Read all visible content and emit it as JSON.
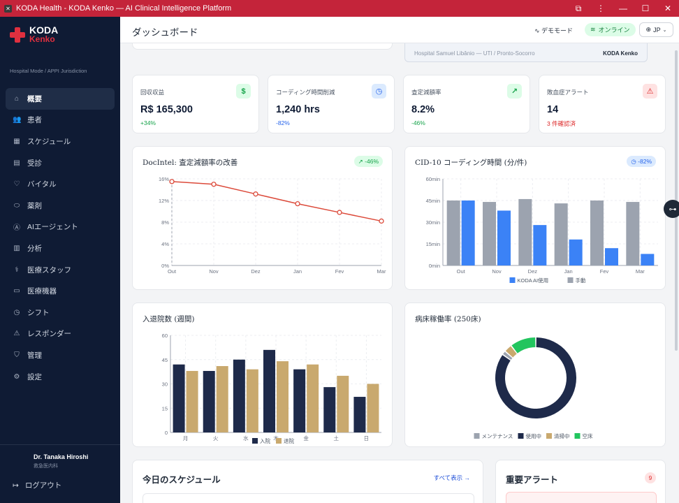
{
  "window": {
    "title": "KODA Health - KODA Kenko — AI Clinical Intelligence Platform"
  },
  "brand": {
    "line1": "KODA",
    "line2": "Kenko",
    "jurisdiction": "Hospital Mode / APPI Jurisdiction"
  },
  "sidebar": {
    "items": [
      {
        "label": "概要",
        "icon": "home-icon",
        "glyph": "⌂"
      },
      {
        "label": "患者",
        "icon": "users-icon",
        "glyph": "👥"
      },
      {
        "label": "スケジュール",
        "icon": "calendar-icon",
        "glyph": "▦"
      },
      {
        "label": "受診",
        "icon": "clipboard-icon",
        "glyph": "▤"
      },
      {
        "label": "バイタル",
        "icon": "heart-icon",
        "glyph": "♡"
      },
      {
        "label": "薬剤",
        "icon": "pill-icon",
        "glyph": "⬭"
      },
      {
        "label": "AIエージェント",
        "icon": "ai-icon",
        "glyph": "Ⓐ"
      },
      {
        "label": "分析",
        "icon": "bar-chart-icon",
        "glyph": "▥"
      },
      {
        "label": "医療スタッフ",
        "icon": "stethoscope-icon",
        "glyph": "⚕"
      },
      {
        "label": "医療機器",
        "icon": "monitor-icon",
        "glyph": "▭"
      },
      {
        "label": "シフト",
        "icon": "clock-icon",
        "glyph": "◷"
      },
      {
        "label": "レスポンダー",
        "icon": "siren-icon",
        "glyph": "⚠"
      },
      {
        "label": "管理",
        "icon": "shield-icon",
        "glyph": "⛉"
      },
      {
        "label": "設定",
        "icon": "gear-icon",
        "glyph": "⚙"
      }
    ],
    "user_name": "Dr. Tanaka Hiroshi",
    "user_role": "救急医内科",
    "logout_label": "ログアウト"
  },
  "topbar": {
    "title": "ダッシュボード",
    "demo_label": "デモモード",
    "online_label": "オンライン",
    "lang_label": "JP"
  },
  "hospital_banner": {
    "name": "Hospital Samuel Libânio — UTI / Pronto-Socorro",
    "brand": "KODA Kenko"
  },
  "kpis": [
    {
      "label": "回収収益",
      "value": "R$ 165,300",
      "delta": "+34%",
      "icon": "dollar-icon",
      "glyph": "$",
      "color": "#16a34a",
      "bg": "#dcfce7"
    },
    {
      "label": "コーディング時間削減",
      "value": "1,240 hrs",
      "delta": "-82%",
      "icon": "clock-icon",
      "glyph": "◷",
      "color": "#2563eb",
      "bg": "#dbeafe"
    },
    {
      "label": "査定減額率",
      "value": "8.2%",
      "delta": "-46%",
      "icon": "trend-up-icon",
      "glyph": "↗",
      "color": "#16a34a",
      "bg": "#dcfce7"
    },
    {
      "label": "敗血症アラート",
      "value": "14",
      "delta": "3 件確認済",
      "icon": "alert-triangle-icon",
      "glyph": "⚠",
      "color": "#dc2626",
      "bg": "#fee2e2"
    }
  ],
  "charts": {
    "denial": {
      "title": "DocIntel: 査定減額率の改善",
      "badge": "↗ -46%"
    },
    "coding": {
      "title": "CID-10 コーディング時間 (分/件)",
      "badge": "◷ -82%"
    },
    "admissions": {
      "title": "入退院数 (週間)"
    },
    "beds": {
      "title": "病床稼働率 (250床)"
    }
  },
  "schedule": {
    "title": "今日のスケジュール",
    "view_all": "すべて表示 →"
  },
  "alerts": {
    "title": "重要アラート",
    "count": "9"
  },
  "chart_data": [
    {
      "type": "line",
      "title": "DocIntel: 査定減額率の改善",
      "x": [
        "Out",
        "Nov",
        "Dez",
        "Jan",
        "Fev",
        "Mar"
      ],
      "series": [
        {
          "values": [
            15.5,
            15.0,
            13.2,
            11.4,
            9.8,
            8.2
          ]
        }
      ],
      "ylim": [
        0,
        16
      ],
      "yticks": [
        "0%",
        "4%",
        "8%",
        "12%",
        "16%"
      ],
      "color": "#dc4a3a",
      "grid": true
    },
    {
      "type": "bar",
      "title": "CID-10 コーディング時間 (分/件)",
      "categories": [
        "Out",
        "Nov",
        "Dez",
        "Jan",
        "Fev",
        "Mar"
      ],
      "series": [
        {
          "name": "手動",
          "values": [
            45,
            44,
            46,
            43,
            45,
            44
          ],
          "color": "#9ca3af"
        },
        {
          "name": "KODA AI使用",
          "values": [
            45,
            38,
            28,
            18,
            12,
            8
          ],
          "color": "#3b82f6"
        }
      ],
      "ylim": [
        0,
        60
      ],
      "yticks": [
        "0min",
        "15min",
        "30min",
        "45min",
        "60min"
      ],
      "legend_order": [
        "KODA AI使用",
        "手動"
      ]
    },
    {
      "type": "bar",
      "title": "入退院数 (週間)",
      "categories": [
        "月",
        "火",
        "水",
        "木",
        "金",
        "土",
        "日"
      ],
      "series": [
        {
          "name": "入院",
          "values": [
            42,
            38,
            45,
            51,
            39,
            28,
            22
          ],
          "color": "#1e2a4a"
        },
        {
          "name": "退院",
          "values": [
            38,
            41,
            39,
            44,
            42,
            35,
            30
          ],
          "color": "#c9a96e"
        }
      ],
      "ylim": [
        0,
        60
      ],
      "yticks": [
        "0",
        "15",
        "30",
        "45",
        "60"
      ]
    },
    {
      "type": "pie",
      "title": "病床稼働率 (250床)",
      "slices": [
        {
          "name": "使用中",
          "value": 212,
          "color": "#1e2a4a"
        },
        {
          "name": "メンテナンス",
          "value": 4,
          "color": "#9ca3af"
        },
        {
          "name": "清掃中",
          "value": 8,
          "color": "#c9a96e"
        },
        {
          "name": "空床",
          "value": 26,
          "color": "#22c55e"
        }
      ],
      "legend_order": [
        "メンテナンス",
        "使用中",
        "清掃中",
        "空床"
      ]
    }
  ]
}
